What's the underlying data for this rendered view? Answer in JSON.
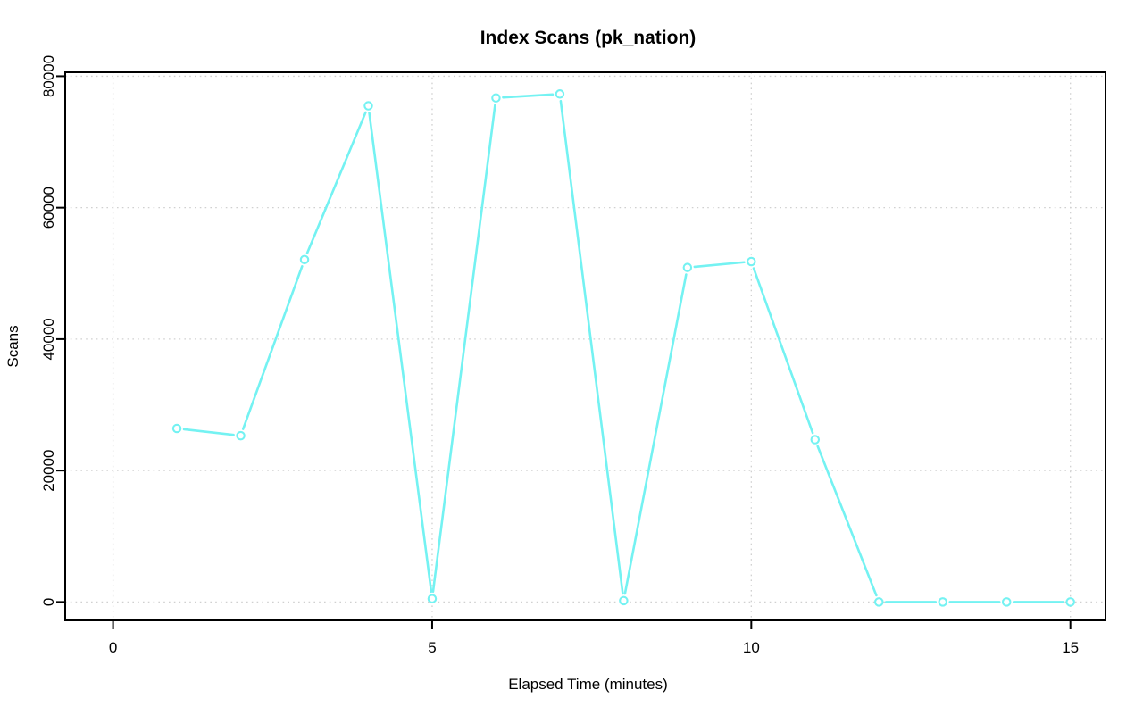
{
  "chart_data": {
    "type": "line",
    "title": "Index Scans (pk_nation)",
    "xlabel": "Elapsed Time (minutes)",
    "ylabel": "Scans",
    "series_name": "pk_nation index scans",
    "x": [
      1,
      2,
      3,
      4,
      5,
      6,
      7,
      8,
      9,
      10,
      11,
      12,
      13,
      14,
      15
    ],
    "values": [
      26400,
      25300,
      52100,
      75500,
      500,
      76700,
      77300,
      200,
      50900,
      51800,
      24700,
      0,
      0,
      0,
      0
    ],
    "xticks": [
      0,
      5,
      10,
      15
    ],
    "yticks": [
      0,
      20000,
      40000,
      60000,
      80000
    ],
    "xtick_labels": [
      "0",
      "5",
      "10",
      "15"
    ],
    "ytick_labels": [
      "0",
      "20000",
      "40000",
      "60000",
      "80000"
    ],
    "xlim": [
      -0.75,
      15.55
    ],
    "ylim": [
      -2800,
      80600
    ],
    "grid": true,
    "grid_style": "dotted",
    "legend_position": "none",
    "marker": "open-circle",
    "line_color": "#74f2f2",
    "grid_color": "#d0d0d0",
    "axis_color": "#000000",
    "text_color": "#000000",
    "background_color": "#ffffff"
  }
}
